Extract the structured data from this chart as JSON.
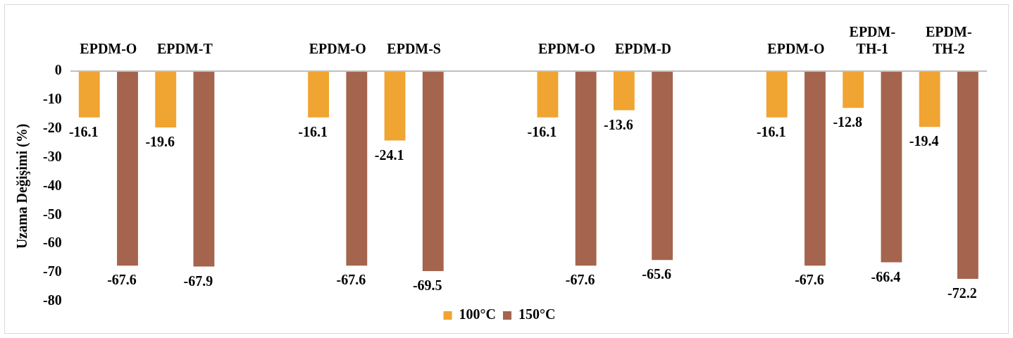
{
  "chart_data": {
    "type": "bar",
    "ylabel": "Uzama Değişimi (%)",
    "categories": [
      "EPDM-O",
      "EPDM-T",
      null,
      "EPDM-O",
      "EPDM-S",
      null,
      "EPDM-O",
      "EPDM-D",
      null,
      "EPDM-O",
      "EPDM-TH-1",
      "EPDM-TH-2"
    ],
    "series": [
      {
        "name": "100°C",
        "color": "#f0a431",
        "values": [
          -16.1,
          -19.6,
          null,
          -16.1,
          -24.1,
          null,
          -16.1,
          -13.6,
          null,
          -16.1,
          -12.8,
          -19.4
        ]
      },
      {
        "name": "150°C",
        "color": "#a5644e",
        "values": [
          -67.6,
          -67.9,
          null,
          -67.6,
          -69.5,
          null,
          -67.6,
          -65.6,
          null,
          -67.6,
          -66.4,
          -72.2
        ]
      }
    ],
    "ylim": [
      -80,
      0
    ],
    "yticks": [
      0,
      -10,
      -20,
      -30,
      -40,
      -50,
      -60,
      -70,
      -80
    ],
    "grid": false,
    "legend": "bottom",
    "data_labels": true
  }
}
